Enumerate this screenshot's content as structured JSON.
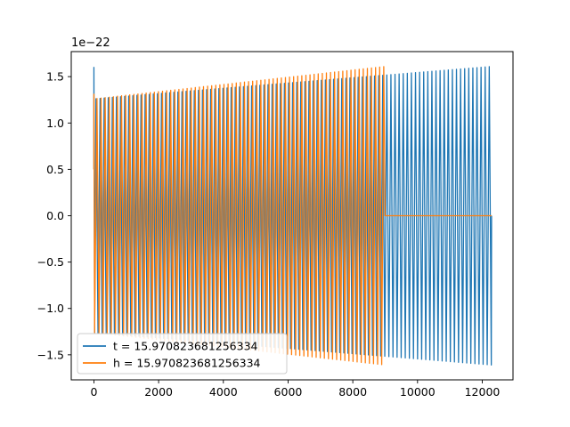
{
  "chart_data": {
    "type": "line",
    "title": "",
    "xlabel": "",
    "ylabel": "",
    "y_scale_label": "1e−22",
    "xlim": [
      -700,
      12950
    ],
    "ylim": [
      -1.77,
      1.77
    ],
    "x_ticks": [
      0,
      2000,
      4000,
      6000,
      8000,
      10000,
      12000
    ],
    "x_tick_labels": [
      "0",
      "2000",
      "4000",
      "6000",
      "8000",
      "10000",
      "12000"
    ],
    "y_ticks": [
      -1.5,
      -1.0,
      -0.5,
      0.0,
      0.5,
      1.0,
      1.5
    ],
    "y_tick_labels": [
      "−1.5",
      "−1.0",
      "−0.5",
      "0.0",
      "0.5",
      "1.0",
      "1.5"
    ],
    "grid": false,
    "legend_position": "lower-left",
    "series": [
      {
        "name": "t = 15.970823681256334",
        "color": "#1f77b4",
        "x_range": [
          0,
          12288
        ],
        "amplitude_start": 1.26,
        "amplitude_end": 1.61,
        "initial_peak": 1.6,
        "shape": "chirp oscillation across full range"
      },
      {
        "name": "h = 15.970823681256334",
        "color": "#ff7f0e",
        "x_range": [
          0,
          9000
        ],
        "amplitude_start": 1.26,
        "amplitude_end": 1.61,
        "initial_peak": 1.31,
        "zero_after_x": 9000,
        "zero_until_x": 12288,
        "shape": "chirp oscillation, then flat zero"
      }
    ]
  }
}
